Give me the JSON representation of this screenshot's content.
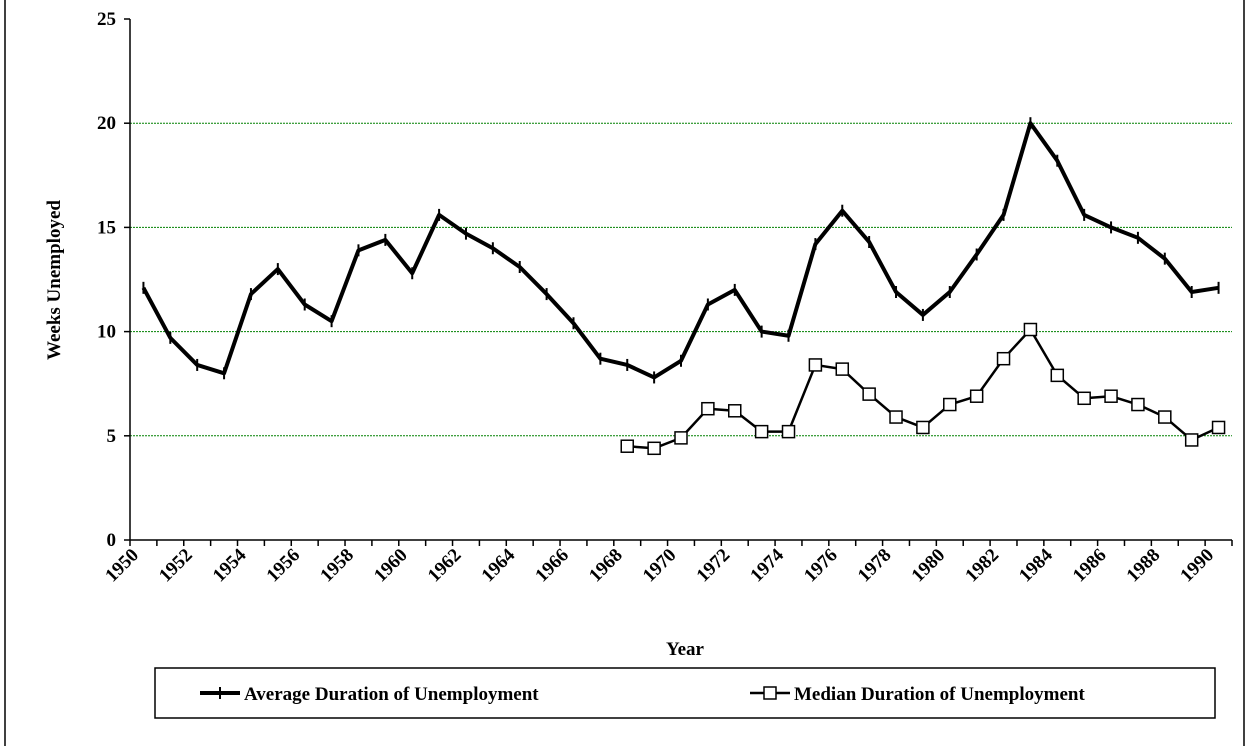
{
  "chart_data": {
    "type": "line",
    "y_label": "Weeks Unemployed",
    "x_label": "Year",
    "categories": [
      "1950",
      null,
      "1952",
      null,
      "1954",
      null,
      "1956",
      null,
      "1958",
      null,
      "1960",
      null,
      "1962",
      null,
      "1964",
      null,
      "1966",
      null,
      "1968",
      null,
      "1970",
      null,
      "1972",
      null,
      "1974",
      null,
      "1976",
      null,
      "1978",
      null,
      "1980",
      null,
      "1982",
      null,
      "1984",
      null,
      "1986",
      null,
      "1988",
      null,
      "1990"
    ],
    "series": [
      {
        "name": "Average Duration of Unemployment",
        "color": "#000000",
        "marker": "plus",
        "values": [
          12.1,
          9.7,
          8.4,
          8.0,
          11.8,
          13.0,
          11.3,
          10.5,
          13.9,
          14.4,
          12.8,
          15.6,
          14.7,
          14.0,
          13.1,
          11.8,
          10.4,
          8.7,
          8.4,
          7.8,
          8.6,
          11.3,
          12.0,
          10.0,
          9.8,
          14.2,
          15.8,
          14.3,
          11.9,
          10.8,
          11.9,
          13.7,
          15.6,
          20.0,
          18.2,
          15.6,
          15.0,
          14.5,
          13.5,
          11.9,
          12.1
        ]
      },
      {
        "name": "Median Duration of Unemployment",
        "color": "#000000",
        "marker": "square",
        "values": [
          null,
          null,
          null,
          null,
          null,
          null,
          null,
          null,
          null,
          null,
          null,
          null,
          null,
          null,
          null,
          null,
          null,
          null,
          4.5,
          4.4,
          4.9,
          6.3,
          6.2,
          5.2,
          5.2,
          8.4,
          8.2,
          7.0,
          5.9,
          5.4,
          6.5,
          6.9,
          8.7,
          10.1,
          7.9,
          6.8,
          6.9,
          6.5,
          5.9,
          4.8,
          5.4
        ]
      }
    ],
    "ylim": [
      0,
      25
    ],
    "yticks": [
      0,
      5,
      10,
      15,
      20,
      25
    ],
    "grid": true,
    "grid_color": "#008000",
    "legend": "bottom"
  }
}
